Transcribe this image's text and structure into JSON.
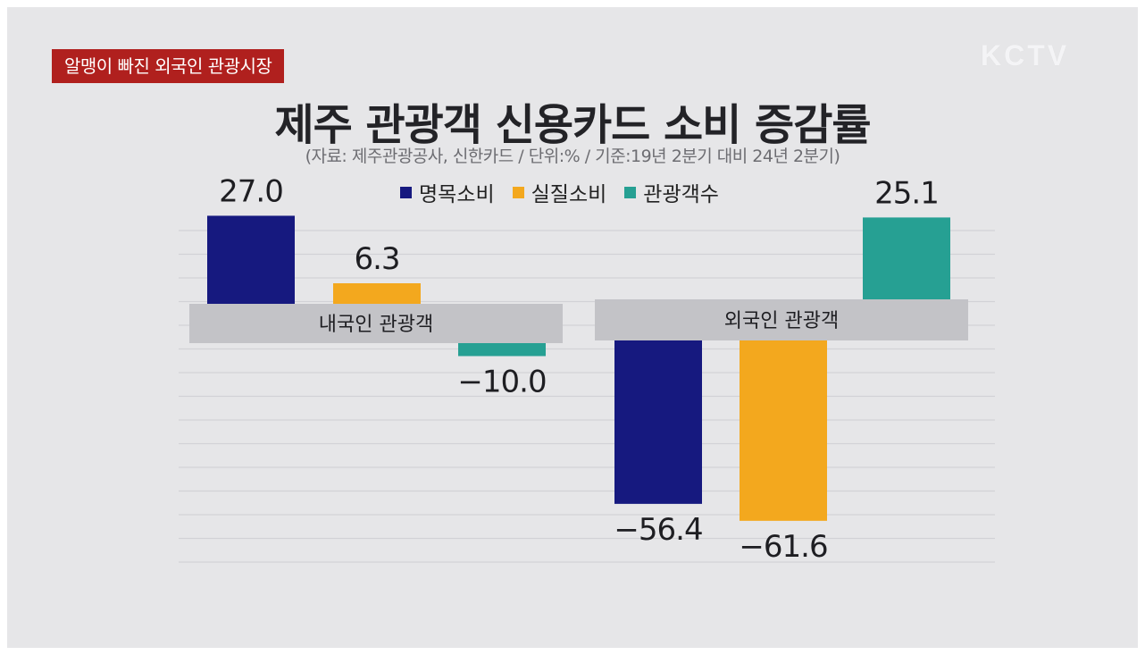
{
  "tag": "알맹이 빠진 외국인 관광시장",
  "logo": "KCTV",
  "chart_data": {
    "type": "bar",
    "title": "제주 관광객 신용카드 소비 증감률",
    "subtitle": "(자료: 제주관광공사, 신한카드 / 단위:% / 기준:19년 2분기 대비 24년 2분기)",
    "categories": [
      "내국인 관광객",
      "외국인 관광객"
    ],
    "series": [
      {
        "name": "명목소비",
        "color": "#16197f",
        "values": [
          27.0,
          -56.4
        ],
        "labels": [
          "27.0",
          "−56.4"
        ]
      },
      {
        "name": "실질소비",
        "color": "#f3a81e",
        "values": [
          6.3,
          -61.6
        ],
        "labels": [
          "6.3",
          "−61.6"
        ]
      },
      {
        "name": "관광객수",
        "color": "#26a093",
        "values": [
          -10.0,
          25.1
        ],
        "labels": [
          "−10.0",
          "25.1"
        ]
      }
    ],
    "legend_position": "top-center",
    "grid": true
  }
}
